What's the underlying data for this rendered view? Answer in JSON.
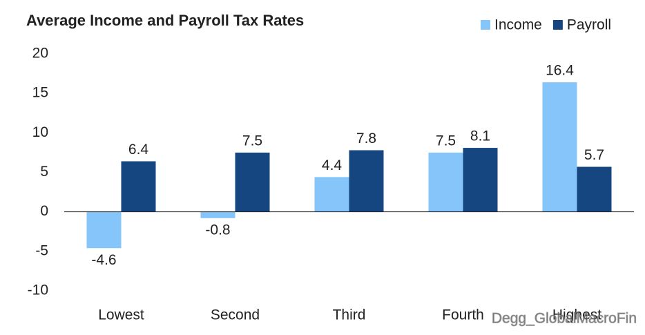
{
  "chart_data": {
    "type": "bar",
    "title": "Average Income and Payroll Tax Rates",
    "categories": [
      "Lowest",
      "Second",
      "Third",
      "Fourth",
      "Highest"
    ],
    "series": [
      {
        "name": "Income",
        "color": "#85c5f9",
        "values": [
          -4.6,
          -0.8,
          4.4,
          7.5,
          16.4
        ]
      },
      {
        "name": "Payroll",
        "color": "#15467f",
        "values": [
          6.4,
          7.5,
          7.8,
          8.1,
          5.7
        ]
      }
    ],
    "ylim": [
      -10,
      20
    ],
    "yticks": [
      -10,
      -5,
      0,
      5,
      10,
      15,
      20
    ],
    "grid": false,
    "legend": "top-right",
    "watermark": "Degg_GlobalMacroFin"
  }
}
